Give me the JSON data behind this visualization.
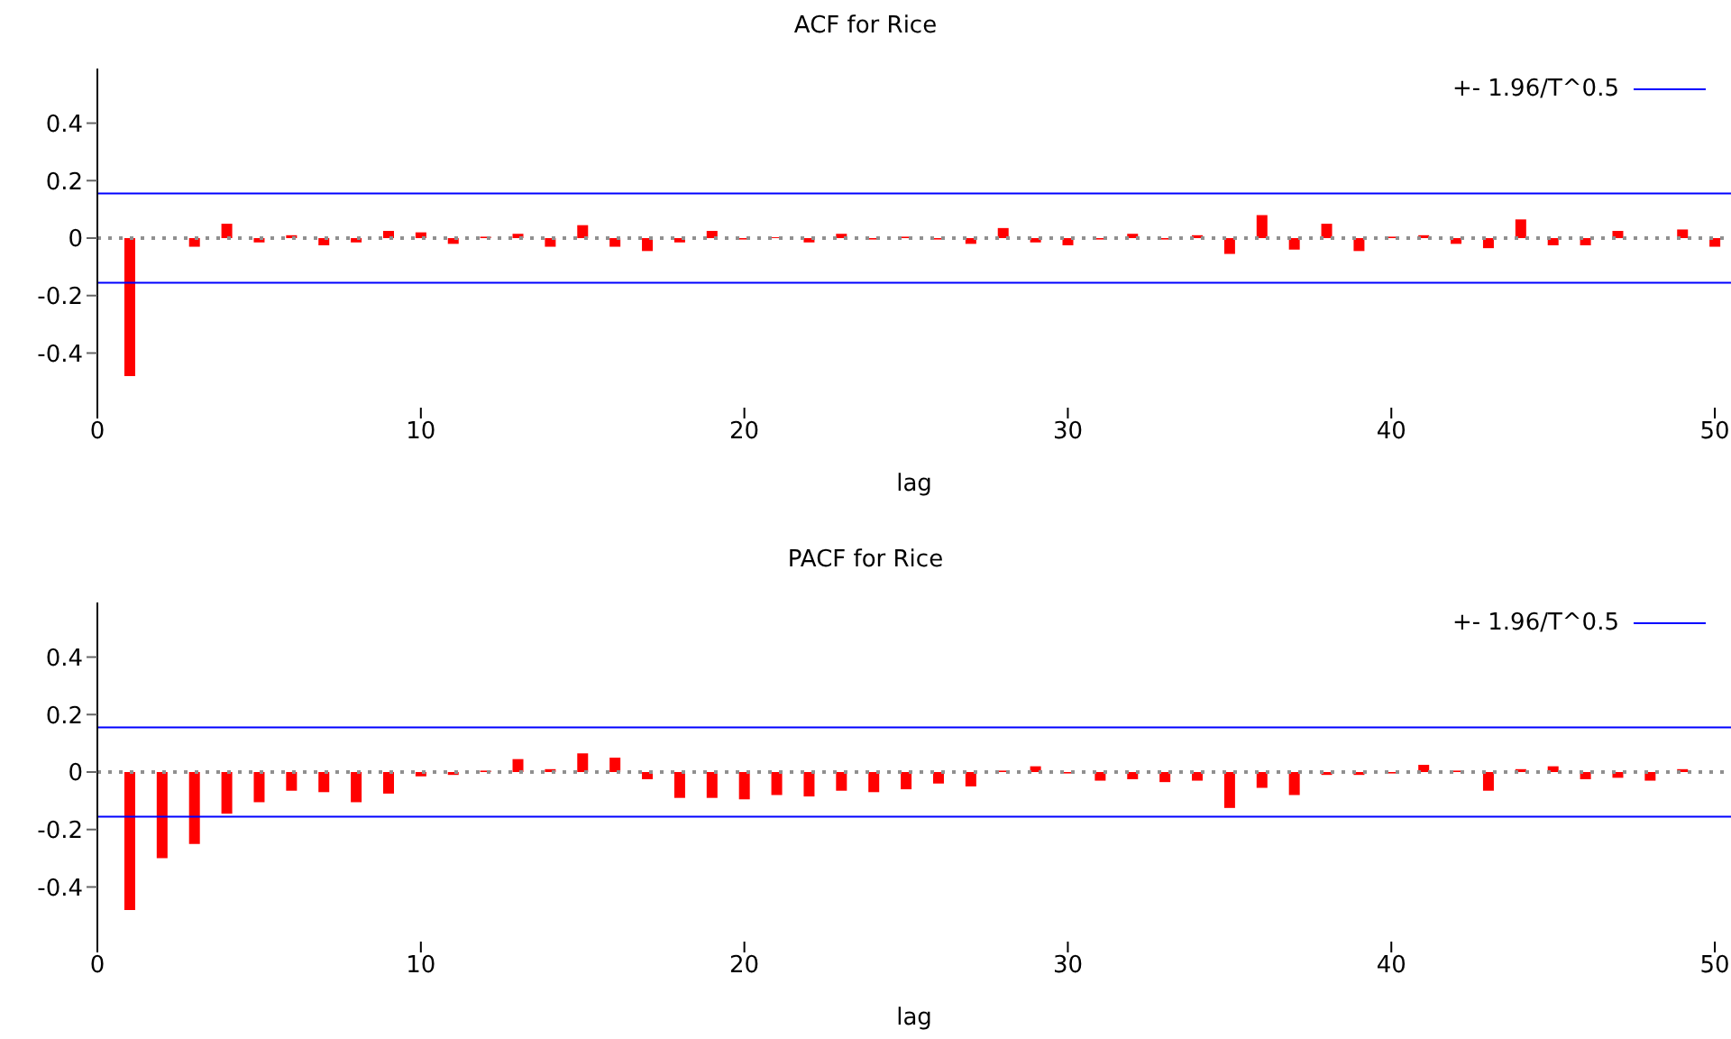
{
  "chart_data": [
    {
      "type": "bar",
      "title": "ACF for Rice",
      "xlabel": "lag",
      "x": [
        1,
        2,
        3,
        4,
        5,
        6,
        7,
        8,
        9,
        10,
        11,
        12,
        13,
        14,
        15,
        16,
        17,
        18,
        19,
        20,
        21,
        22,
        23,
        24,
        25,
        26,
        27,
        28,
        29,
        30,
        31,
        32,
        33,
        34,
        35,
        36,
        37,
        38,
        39,
        40,
        41,
        42,
        43,
        44,
        45,
        46,
        47,
        48,
        49,
        50
      ],
      "values": [
        -0.48,
        0,
        -0.03,
        0.05,
        -0.015,
        0.01,
        -0.025,
        -0.015,
        0.025,
        0.02,
        -0.02,
        0.005,
        0.015,
        -0.03,
        0.045,
        -0.03,
        -0.045,
        -0.015,
        0.025,
        -0.005,
        0.003,
        -0.015,
        0.015,
        -0.005,
        0.005,
        -0.005,
        -0.02,
        0.035,
        -0.015,
        -0.025,
        -0.005,
        0.015,
        -0.005,
        0.01,
        -0.055,
        0.08,
        -0.04,
        0.05,
        -0.045,
        0.005,
        0.01,
        -0.02,
        -0.035,
        0.065,
        -0.025,
        -0.025,
        0.025,
        0,
        0.03,
        -0.03
      ],
      "color": "#ff0000",
      "xlim": [
        0,
        50.5
      ],
      "xticks": [
        0,
        10,
        20,
        30,
        40,
        50
      ],
      "ylim": [
        -0.59,
        0.59
      ],
      "yticks": [
        -0.4,
        -0.2,
        0,
        0.2,
        0.4
      ],
      "ref_lines": [
        {
          "axis": "y",
          "value": 0,
          "label": null,
          "color": "#909090",
          "line_style": "dotted"
        },
        {
          "axis": "y",
          "value": 0.155,
          "label": "+- 1.96/T^0.5",
          "color": "#0000ff",
          "line_style": "solid"
        },
        {
          "axis": "y",
          "value": -0.155,
          "label": null,
          "color": "#0000ff",
          "line_style": "solid"
        }
      ],
      "legend": "top right"
    },
    {
      "type": "bar",
      "title": "PACF for Rice",
      "xlabel": "lag",
      "x": [
        1,
        2,
        3,
        4,
        5,
        6,
        7,
        8,
        9,
        10,
        11,
        12,
        13,
        14,
        15,
        16,
        17,
        18,
        19,
        20,
        21,
        22,
        23,
        24,
        25,
        26,
        27,
        28,
        29,
        30,
        31,
        32,
        33,
        34,
        35,
        36,
        37,
        38,
        39,
        40,
        41,
        42,
        43,
        44,
        45,
        46,
        47,
        48,
        49,
        50
      ],
      "values": [
        -0.48,
        -0.3,
        -0.25,
        -0.145,
        -0.105,
        -0.065,
        -0.07,
        -0.105,
        -0.075,
        -0.015,
        -0.01,
        0.005,
        0.045,
        0.01,
        0.065,
        0.05,
        -0.025,
        -0.09,
        -0.09,
        -0.095,
        -0.08,
        -0.085,
        -0.065,
        -0.07,
        -0.06,
        -0.04,
        -0.05,
        0.005,
        0.02,
        -0.005,
        -0.03,
        -0.025,
        -0.035,
        -0.03,
        -0.125,
        -0.055,
        -0.08,
        -0.01,
        -0.01,
        -0.005,
        0.025,
        0.005,
        -0.065,
        0.01,
        0.02,
        -0.025,
        -0.02,
        -0.03,
        0.01,
        0
      ],
      "color": "#ff0000",
      "xlim": [
        0,
        50.5
      ],
      "xticks": [
        0,
        10,
        20,
        30,
        40,
        50
      ],
      "ylim": [
        -0.59,
        0.59
      ],
      "yticks": [
        -0.4,
        -0.2,
        0,
        0.2,
        0.4
      ],
      "ref_lines": [
        {
          "axis": "y",
          "value": 0,
          "label": null,
          "color": "#909090",
          "line_style": "dotted"
        },
        {
          "axis": "y",
          "value": 0.155,
          "label": "+- 1.96/T^0.5",
          "color": "#0000ff",
          "line_style": "solid"
        },
        {
          "axis": "y",
          "value": -0.155,
          "label": null,
          "color": "#0000ff",
          "line_style": "solid"
        }
      ],
      "legend": "top right"
    }
  ]
}
